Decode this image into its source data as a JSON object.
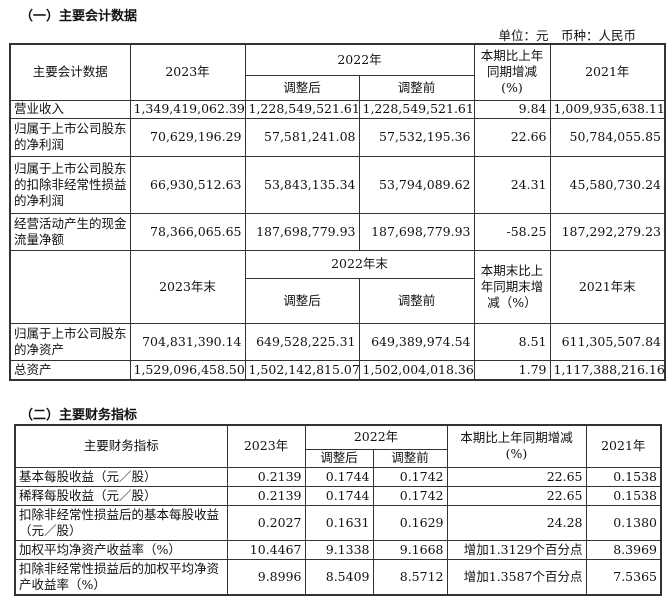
{
  "section1": {
    "title": "（一）主要会计数据",
    "unit": "单位：元　币种：人民币",
    "header": {
      "item": "主要会计数据",
      "y2023": "2023年",
      "y2022": "2022年",
      "adjusted": "调整后",
      "before": "调整前",
      "change": "本期比上年同期增减(%)",
      "y2021": "2021年"
    },
    "rows": [
      {
        "label": "营业收入",
        "v2023": "1,349,419,062.39",
        "adj": "1,228,549,521.61",
        "pre": "1,228,549,521.61",
        "chg": "9.84",
        "v2021": "1,009,935,638.11"
      },
      {
        "label": "归属于上市公司股东的净利润",
        "v2023": "70,629,196.29",
        "adj": "57,581,241.08",
        "pre": "57,532,195.36",
        "chg": "22.66",
        "v2021": "50,784,055.85"
      },
      {
        "label": "归属于上市公司股东的扣除非经常性损益的净利润",
        "v2023": "66,930,512.63",
        "adj": "53,843,135.34",
        "pre": "53,794,089.62",
        "chg": "24.31",
        "v2021": "45,580,730.24"
      },
      {
        "label": "经营活动产生的现金流量净额",
        "v2023": "78,366,065.65",
        "adj": "187,698,779.93",
        "pre": "187,698,779.93",
        "chg": "-58.25",
        "v2021": "187,292,279.23"
      }
    ],
    "header2": {
      "y2023": "2023年末",
      "y2022": "2022年末",
      "adjusted": "调整后",
      "before": "调整前",
      "change": "本期末比上年同期末增减（%）",
      "y2021": "2021年末"
    },
    "rows2": [
      {
        "label": "归属于上市公司股东的净资产",
        "v2023": "704,831,390.14",
        "adj": "649,528,225.31",
        "pre": "649,389,974.54",
        "chg": "8.51",
        "v2021": "611,305,507.84"
      },
      {
        "label": "总资产",
        "v2023": "1,529,096,458.50",
        "adj": "1,502,142,815.07",
        "pre": "1,502,004,018.36",
        "chg": "1.79",
        "v2021": "1,117,388,216.16"
      }
    ]
  },
  "section2": {
    "title": "（二）主要财务指标",
    "header": {
      "item": "主要财务指标",
      "y2023": "2023年",
      "y2022": "2022年",
      "adjusted": "调整后",
      "before": "调整前",
      "change": "本期比上年同期增减(%)",
      "y2021": "2021年"
    },
    "rows": [
      {
        "label": "基本每股收益（元／股）",
        "v2023": "0.2139",
        "adj": "0.1744",
        "pre": "0.1742",
        "chg": "22.65",
        "v2021": "0.1538"
      },
      {
        "label": "稀释每股收益（元／股）",
        "v2023": "0.2139",
        "adj": "0.1744",
        "pre": "0.1742",
        "chg": "22.65",
        "v2021": "0.1538"
      },
      {
        "label": "扣除非经常性损益后的基本每股收益（元／股）",
        "v2023": "0.2027",
        "adj": "0.1631",
        "pre": "0.1629",
        "chg": "24.28",
        "v2021": "0.1380"
      },
      {
        "label": "加权平均净资产收益率（%）",
        "v2023": "10.4467",
        "adj": "9.1338",
        "pre": "9.1668",
        "chg": "增加1.3129个百分点",
        "v2021": "8.3969"
      },
      {
        "label": "扣除非经常性损益后的加权平均净资产收益率（%）",
        "v2023": "9.8996",
        "adj": "8.5409",
        "pre": "8.5712",
        "chg": "增加1.3587个百分点",
        "v2021": "7.5365"
      }
    ]
  }
}
